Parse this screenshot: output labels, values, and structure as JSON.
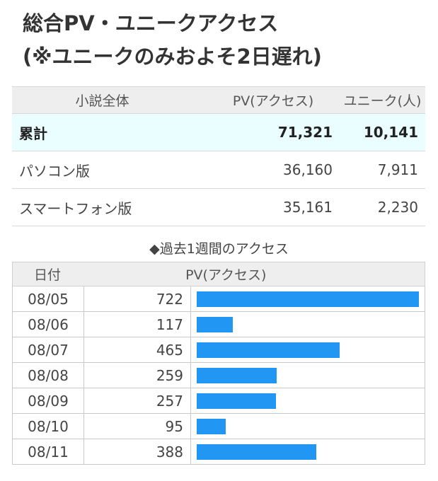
{
  "header": {
    "title_line1": "総合PV・ユニークアクセス",
    "title_line2": "(※ユニークのみおよそ2日遅れ)"
  },
  "summary": {
    "headers": [
      "小説全体",
      "PV(アクセス)",
      "ユニーク(人)"
    ],
    "rows": [
      {
        "label": "累計",
        "pv": "71,321",
        "unique": "10,141"
      },
      {
        "label": "パソコン版",
        "pv": "36,160",
        "unique": "7,911"
      },
      {
        "label": "スマートフォン版",
        "pv": "35,161",
        "unique": "2,230"
      }
    ]
  },
  "weekly": {
    "title": "◆過去1週間のアクセス",
    "headers": [
      "日付",
      "PV(アクセス)"
    ],
    "bar_color": "#2196f3",
    "max_value": 722,
    "rows": [
      {
        "date": "08/05",
        "pv": "722",
        "value": 722
      },
      {
        "date": "08/06",
        "pv": "117",
        "value": 117
      },
      {
        "date": "08/07",
        "pv": "465",
        "value": 465
      },
      {
        "date": "08/08",
        "pv": "259",
        "value": 259
      },
      {
        "date": "08/09",
        "pv": "257",
        "value": 257
      },
      {
        "date": "08/10",
        "pv": "95",
        "value": 95
      },
      {
        "date": "08/11",
        "pv": "388",
        "value": 388
      }
    ]
  }
}
